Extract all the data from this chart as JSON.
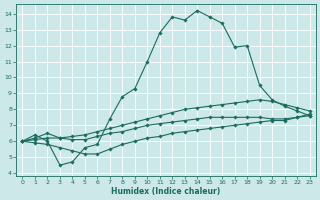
{
  "title": "",
  "xlabel": "Humidex (Indice chaleur)",
  "ylabel": "",
  "bg_color": "#cce8e8",
  "grid_color": "#ffffff",
  "line_color": "#1a6b5e",
  "xlim": [
    -0.5,
    23.5
  ],
  "ylim": [
    3.8,
    14.6
  ],
  "xticks": [
    0,
    1,
    2,
    3,
    4,
    5,
    6,
    7,
    8,
    9,
    10,
    11,
    12,
    13,
    14,
    15,
    16,
    17,
    18,
    19,
    20,
    21,
    22,
    23
  ],
  "yticks": [
    4,
    5,
    6,
    7,
    8,
    9,
    10,
    11,
    12,
    13,
    14
  ],
  "series": [
    {
      "x": [
        0,
        1,
        2,
        3,
        4,
        5,
        6,
        7,
        8,
        9,
        10,
        11,
        12,
        13,
        14,
        15,
        16,
        17,
        18,
        19,
        20,
        21,
        22,
        23
      ],
      "y": [
        6.0,
        6.4,
        6.0,
        4.5,
        4.7,
        5.6,
        5.8,
        7.4,
        8.8,
        9.3,
        11.0,
        12.8,
        13.8,
        13.6,
        14.2,
        13.8,
        13.4,
        11.9,
        12.0,
        9.5,
        8.6,
        8.2,
        7.9,
        7.6
      ]
    },
    {
      "x": [
        0,
        1,
        2,
        3,
        4,
        5,
        6,
        7,
        8,
        9,
        10,
        11,
        12,
        13,
        14,
        15,
        16,
        17,
        18,
        19,
        20,
        21,
        22,
        23
      ],
      "y": [
        6.0,
        6.2,
        6.5,
        6.2,
        6.3,
        6.4,
        6.6,
        6.8,
        7.0,
        7.2,
        7.4,
        7.6,
        7.8,
        8.0,
        8.1,
        8.2,
        8.3,
        8.4,
        8.5,
        8.6,
        8.5,
        8.3,
        8.1,
        7.9
      ]
    },
    {
      "x": [
        0,
        1,
        2,
        3,
        4,
        5,
        6,
        7,
        8,
        9,
        10,
        11,
        12,
        13,
        14,
        15,
        16,
        17,
        18,
        19,
        20,
        21,
        22,
        23
      ],
      "y": [
        6.0,
        6.1,
        6.2,
        6.2,
        6.1,
        6.1,
        6.3,
        6.5,
        6.6,
        6.8,
        7.0,
        7.1,
        7.2,
        7.3,
        7.4,
        7.5,
        7.5,
        7.5,
        7.5,
        7.5,
        7.4,
        7.4,
        7.5,
        7.6
      ]
    },
    {
      "x": [
        0,
        1,
        2,
        3,
        4,
        5,
        6,
        7,
        8,
        9,
        10,
        11,
        12,
        13,
        14,
        15,
        16,
        17,
        18,
        19,
        20,
        21,
        22,
        23
      ],
      "y": [
        6.0,
        5.9,
        5.8,
        5.6,
        5.4,
        5.2,
        5.2,
        5.5,
        5.8,
        6.0,
        6.2,
        6.3,
        6.5,
        6.6,
        6.7,
        6.8,
        6.9,
        7.0,
        7.1,
        7.2,
        7.3,
        7.3,
        7.5,
        7.7
      ]
    }
  ],
  "xlabel_fontsize": 5.5,
  "tick_fontsize": 4.5,
  "linewidth": 0.8,
  "markersize": 1.8
}
